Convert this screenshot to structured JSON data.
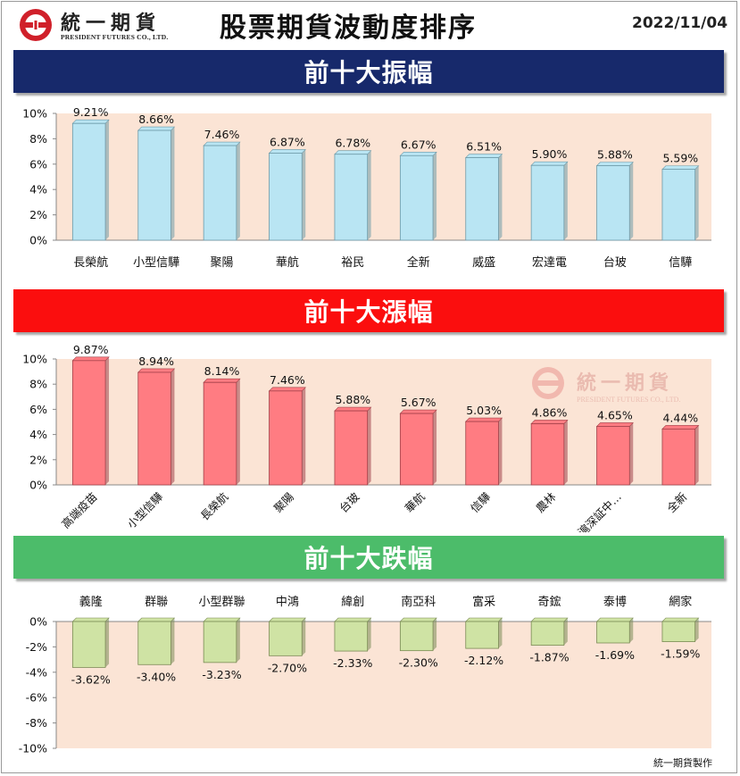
{
  "header": {
    "logo_cn": "統一期貨",
    "logo_en": "PRESIDENT FUTURES CO., LTD.",
    "title": "股票期貨波動度排序",
    "date": "2022/11/04"
  },
  "colors": {
    "logo_red": "#d0202a",
    "banner_blue": "#17296b",
    "banner_red": "#fb0e0e",
    "banner_green": "#4cbc6a",
    "plot_bg": "#fbe4d5",
    "bar_blue": "#b9e5f3",
    "bar_red": "#ff7c82",
    "bar_green": "#cfe3a4"
  },
  "banners": {
    "amplitude": "前十大振幅",
    "gain": "前十大漲幅",
    "loss": "前十大跌幅"
  },
  "watermark": {
    "cn": "統一期貨",
    "en": "PRESIDENT FUTURES CO., LTD."
  },
  "credit": "統一期貨製作",
  "chart_data": [
    {
      "id": "amplitude",
      "type": "bar",
      "categories": [
        "長榮航",
        "小型信驊",
        "聚陽",
        "華航",
        "裕民",
        "全新",
        "威盛",
        "宏達電",
        "台玻",
        "信驊"
      ],
      "values": [
        9.21,
        8.66,
        7.46,
        6.87,
        6.78,
        6.67,
        6.51,
        5.9,
        5.88,
        5.59
      ],
      "value_labels": [
        "9.21%",
        "8.66%",
        "7.46%",
        "6.87%",
        "6.78%",
        "6.67%",
        "6.51%",
        "5.90%",
        "5.88%",
        "5.59%"
      ],
      "yticks": [
        "10%",
        "8%",
        "6%",
        "4%",
        "2%",
        "0%"
      ],
      "ylim": [
        0,
        10
      ],
      "grid": false
    },
    {
      "id": "gain",
      "type": "bar",
      "categories": [
        "高端疫苗",
        "小型信驊",
        "長榮航",
        "聚陽",
        "台玻",
        "華航",
        "信驊",
        "農林",
        "元大滬深証中…",
        "全新"
      ],
      "values": [
        9.87,
        8.94,
        8.14,
        7.46,
        5.88,
        5.67,
        5.03,
        4.86,
        4.65,
        4.44
      ],
      "value_labels": [
        "9.87%",
        "8.94%",
        "8.14%",
        "7.46%",
        "5.88%",
        "5.67%",
        "5.03%",
        "4.86%",
        "4.65%",
        "4.44%"
      ],
      "yticks": [
        "10%",
        "8%",
        "6%",
        "4%",
        "2%",
        "0%"
      ],
      "ylim": [
        0,
        10
      ],
      "grid": false
    },
    {
      "id": "loss",
      "type": "bar",
      "categories": [
        "義隆",
        "群聯",
        "小型群聯",
        "中鴻",
        "緯創",
        "南亞科",
        "富采",
        "奇鋐",
        "泰博",
        "網家"
      ],
      "values": [
        -3.62,
        -3.4,
        -3.23,
        -2.7,
        -2.33,
        -2.3,
        -2.12,
        -1.87,
        -1.69,
        -1.59
      ],
      "value_labels": [
        "-3.62%",
        "-3.40%",
        "-3.23%",
        "-2.70%",
        "-2.33%",
        "-2.30%",
        "-2.12%",
        "-1.87%",
        "-1.69%",
        "-1.59%"
      ],
      "yticks": [
        "0%",
        "-2%",
        "-4%",
        "-6%",
        "-8%",
        "-10%"
      ],
      "ylim": [
        -10,
        0
      ],
      "grid": false
    }
  ]
}
